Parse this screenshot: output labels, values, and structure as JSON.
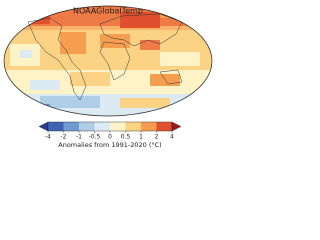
{
  "map": {
    "title": "NOAAGlobalTemp"
  },
  "colorbar": {
    "ticks": [
      -4,
      -2,
      -1,
      -0.5,
      0,
      0.5,
      1,
      2,
      4
    ],
    "colors": [
      "#2b3a8f",
      "#3f62b5",
      "#6f9bd0",
      "#aecde6",
      "#dceaf3",
      "#fdf3c6",
      "#fcd284",
      "#f59e4f",
      "#e0502f",
      "#9e1a22"
    ],
    "label": "Anomalies from 1991-2020 (°C)"
  }
}
